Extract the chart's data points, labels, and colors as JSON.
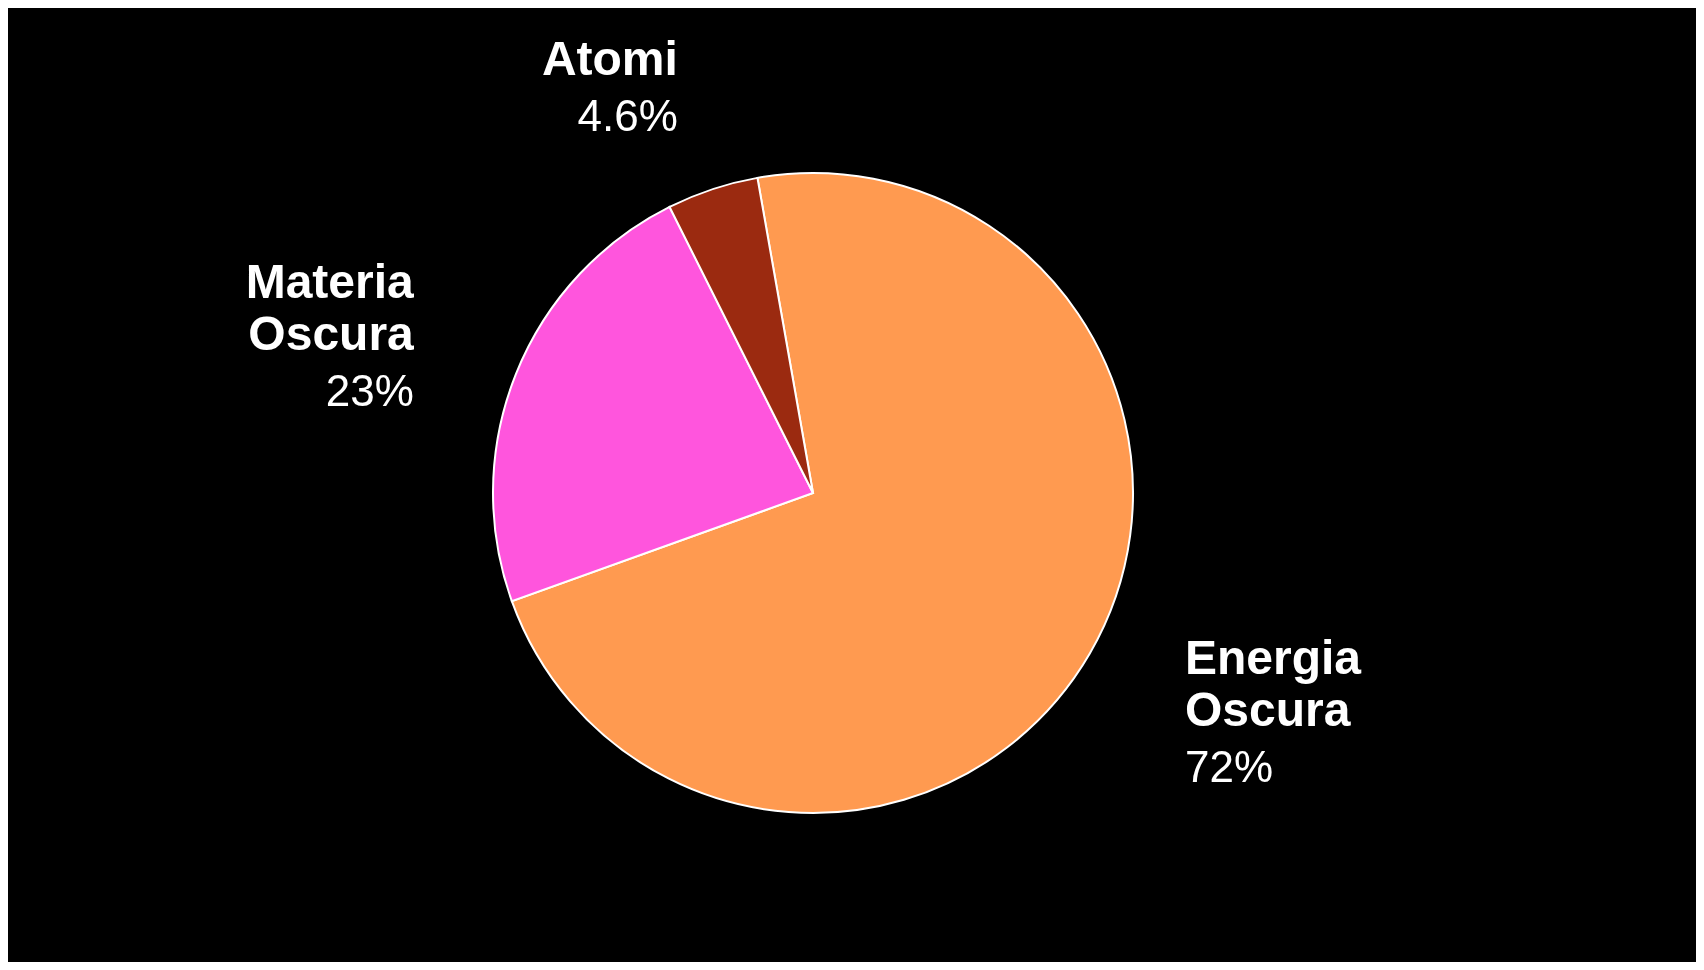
{
  "chart_data": {
    "type": "pie",
    "categories": [
      "Energia Oscura",
      "Materia Oscura",
      "Atomi"
    ],
    "values": [
      72,
      23,
      4.6
    ],
    "value_labels": [
      "72%",
      "23%",
      "4.6%"
    ],
    "colors": [
      "#ff9a50",
      "#ff55dd",
      "#9b2a10"
    ]
  }
}
